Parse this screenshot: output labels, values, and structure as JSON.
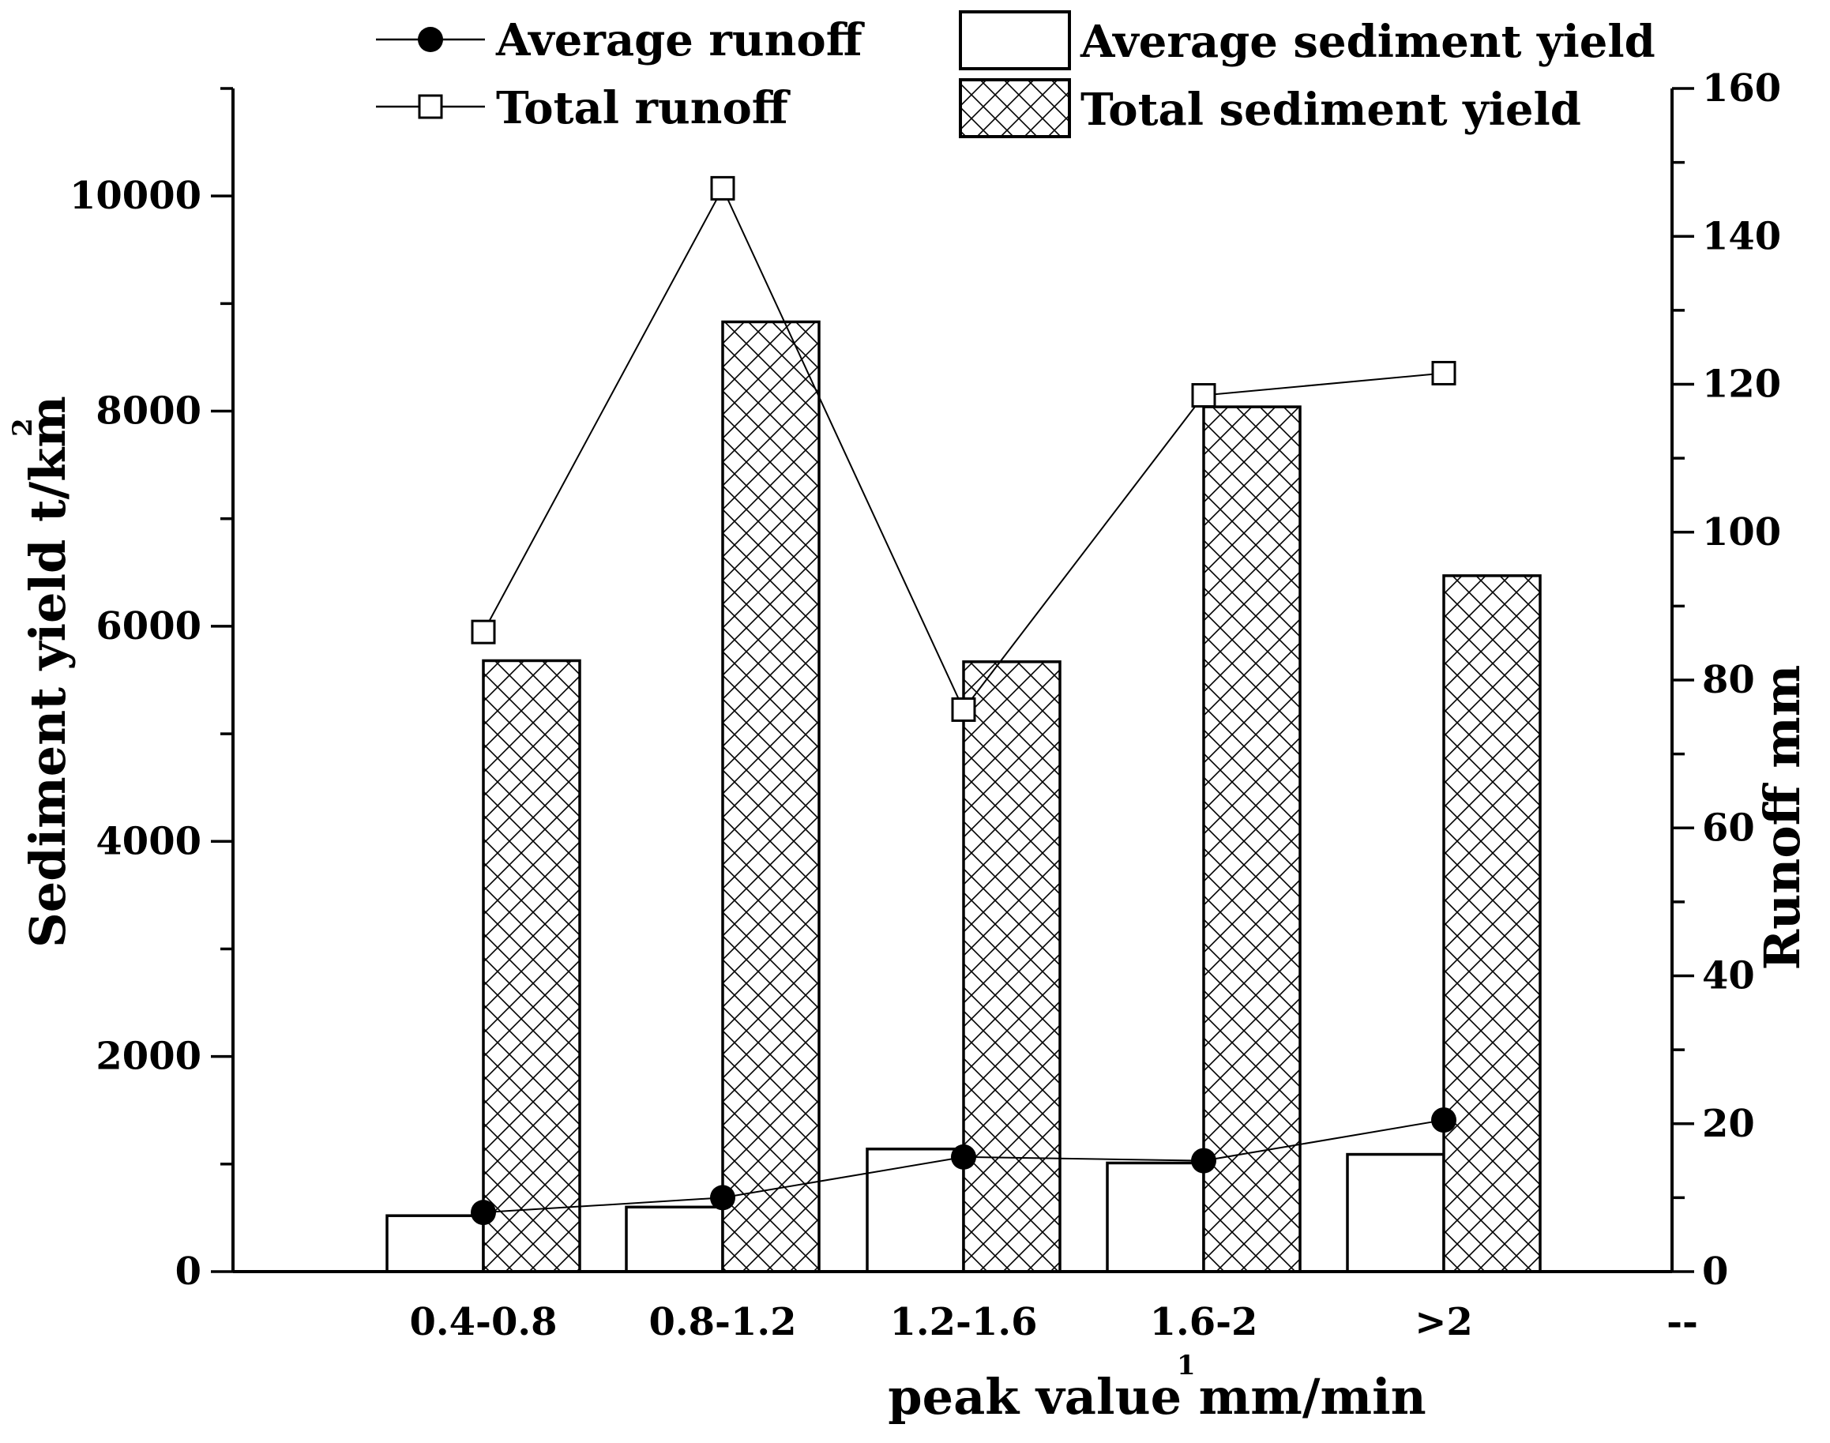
{
  "chart_data": {
    "type": "bar",
    "categories": [
      "0.4-0.8",
      "0.8-1.2",
      "1.2-1.6",
      "1.6-2",
      ">2"
    ],
    "extra_category_label": "--",
    "xlabel": "peak value mm/min",
    "xlabel_sup": "1",
    "ylabel_left": "Sediment yield t/km",
    "ylabel_left_sup": "2",
    "ylabel_right": "Runoff mm",
    "ylim_left": [
      0,
      11000
    ],
    "ylim_right": [
      0,
      160
    ],
    "left_ticks": [
      "0",
      "2000",
      "4000",
      "6000",
      "8000",
      "10000"
    ],
    "right_ticks": [
      "0",
      "20",
      "40",
      "60",
      "80",
      "100",
      "120",
      "140",
      "160"
    ],
    "legend_position": "top",
    "series": [
      {
        "name": "Average runoff",
        "kind": "line",
        "marker": "filled-circle",
        "axis": "right",
        "values": [
          8,
          10,
          15.5,
          15,
          20.5
        ]
      },
      {
        "name": "Total runoff",
        "kind": "line",
        "marker": "open-square",
        "axis": "right",
        "values": [
          86.5,
          146.5,
          76,
          118.5,
          121.5
        ]
      },
      {
        "name": "Average sediment yield",
        "kind": "bar",
        "pattern": "plain",
        "axis": "left",
        "values": [
          520,
          600,
          1140,
          1010,
          1090
        ]
      },
      {
        "name": "Total sediment yield",
        "kind": "bar",
        "pattern": "crosshatch",
        "axis": "left",
        "values": [
          5680,
          8830,
          5670,
          8040,
          6470
        ]
      }
    ]
  }
}
